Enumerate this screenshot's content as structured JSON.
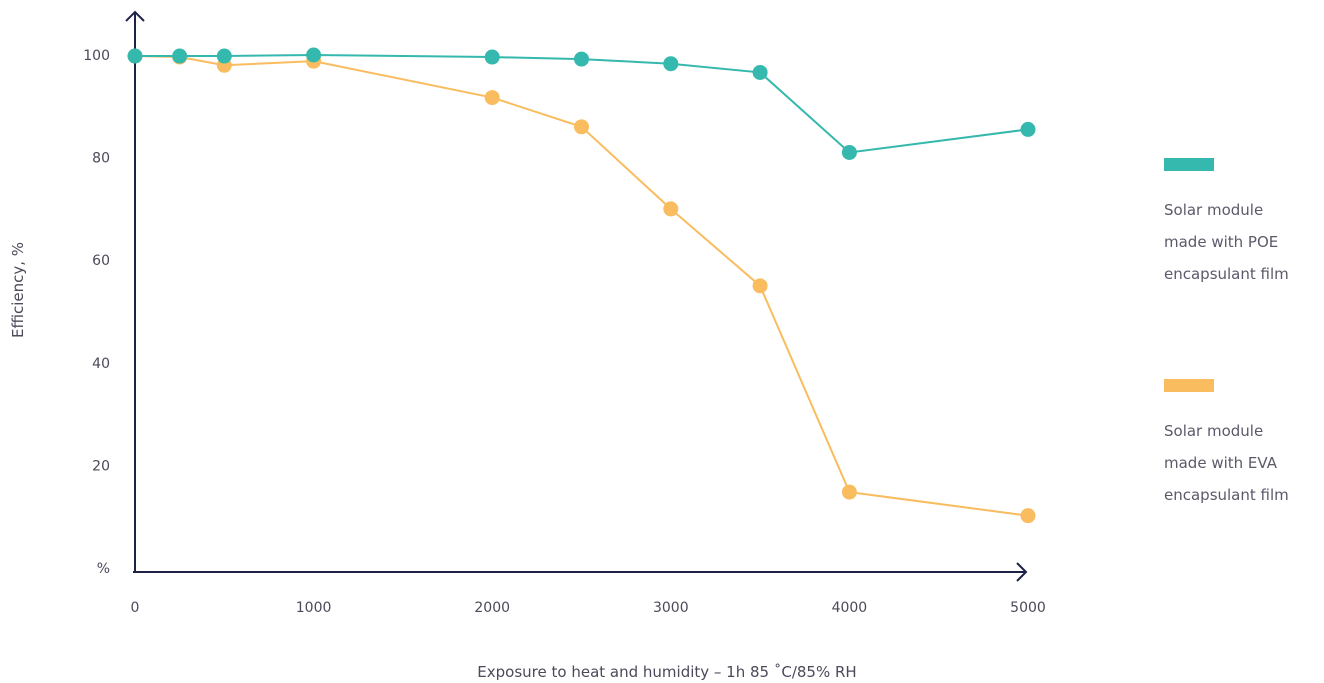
{
  "chart_data": {
    "type": "line",
    "title": "",
    "xlabel": "Exposure to heat and humidity – 1h 85 ˚C/85% RH",
    "ylabel": "Efficiency, %",
    "xlim": [
      0,
      5000
    ],
    "ylim": [
      0,
      100
    ],
    "x_ticks": [
      "0",
      "1000",
      "2000",
      "3000",
      "4000",
      "5000"
    ],
    "y_ticks": [
      "%",
      "20",
      "40",
      "60",
      "80",
      "100"
    ],
    "x_tick_values": [
      0,
      1000,
      2000,
      3000,
      4000,
      5000
    ],
    "y_tick_values": [
      0,
      20,
      40,
      60,
      80,
      100
    ],
    "grid": false,
    "legend_position": "right",
    "series": [
      {
        "name": "Solar module made with POE encapsulant film",
        "color": "#35b8ad",
        "x": [
          0,
          250,
          500,
          1000,
          2000,
          2500,
          3000,
          3500,
          4000,
          5000
        ],
        "y": [
          99.8,
          99.8,
          99.8,
          100,
          99.6,
          99.2,
          98.3,
          96.6,
          81,
          85.5
        ]
      },
      {
        "name": "Solar module made with EVA encapsulant film",
        "color": "#f9bc5e",
        "x": [
          0,
          250,
          500,
          1000,
          2000,
          2500,
          3000,
          3500,
          4000,
          5000
        ],
        "y": [
          99.8,
          99.6,
          98,
          98.8,
          91.7,
          86,
          70,
          55,
          14.8,
          10.2
        ]
      }
    ]
  }
}
